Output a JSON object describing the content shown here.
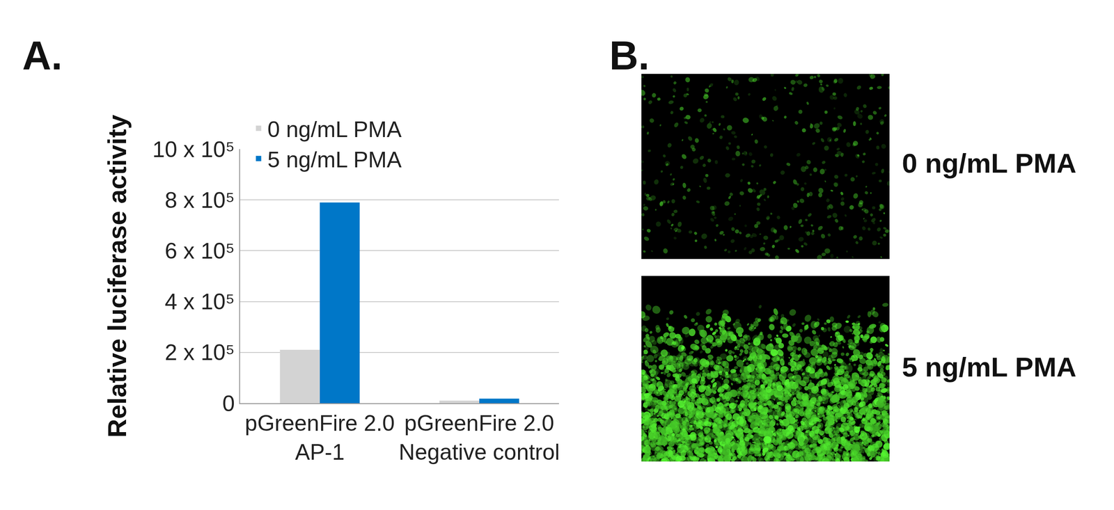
{
  "chart_data": {
    "type": "bar",
    "y_label": "Relative luciferase activity",
    "categories": [
      "pGreenFire 2.0\nAP-1",
      "pGreenFire 2.0\nNegative control"
    ],
    "series": [
      {
        "name": "0 ng/mL PMA",
        "color": "#d3d3d3",
        "values": [
          210000,
          10000
        ]
      },
      {
        "name": "5 ng/mL PMA",
        "color": "#0077c8",
        "values": [
          790000,
          18000
        ]
      }
    ],
    "ylim": [
      0,
      1000000
    ],
    "yticks": [
      0,
      {
        "value": 200000,
        "label": "2 x 10⁵"
      },
      {
        "value": 400000,
        "label": "4 x 10⁵"
      },
      {
        "value": 600000,
        "label": "6 x 10⁵"
      },
      {
        "value": 800000,
        "label": "8 x 10⁵"
      },
      {
        "value": 1000000,
        "label": "10 x 10⁵"
      }
    ],
    "grid": true,
    "legend": "upper left"
  },
  "panel_a": {
    "label": "A."
  },
  "panel_b": {
    "label": "B.",
    "images": [
      {
        "label": "0 ng/mL PMA"
      },
      {
        "label": "5 ng/mL PMA"
      }
    ]
  }
}
